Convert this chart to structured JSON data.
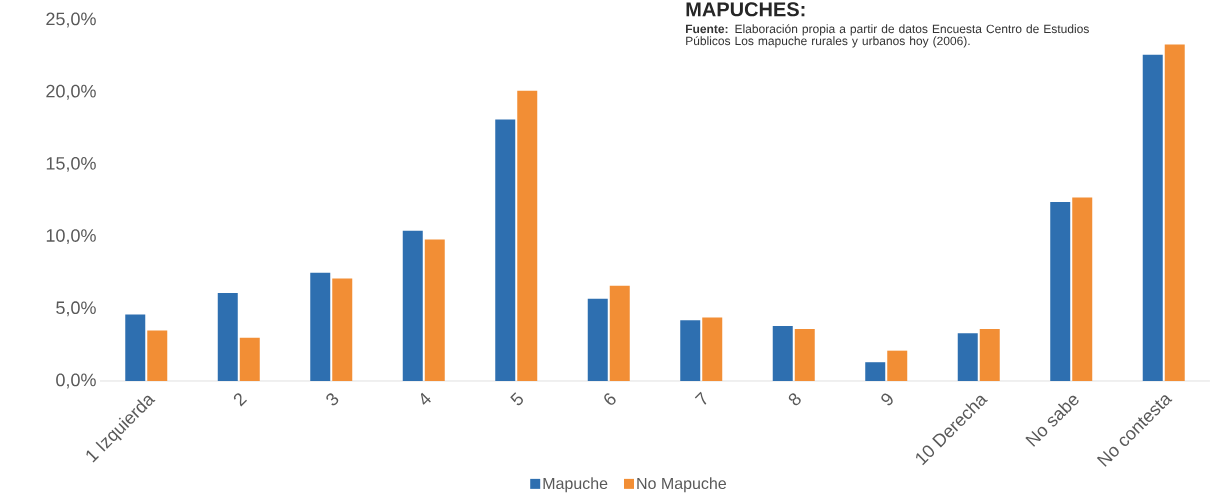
{
  "chart_data": {
    "type": "bar",
    "title": "MAPUCHES:",
    "annotations": [
      "**Fuente:** Elaboración propia a partir de datos Encuesta Centro de Estudios Públicos Los mapuche rurales y urbanos hoy (2006)."
    ],
    "categories": [
      "1 Izquierda",
      "2",
      "3",
      "4",
      "5",
      "6",
      "7",
      "8",
      "9",
      "10 Derecha",
      "No sabe",
      "No contesta"
    ],
    "series": [
      {
        "name": "Mapuche",
        "color": "#2e6fb0",
        "values": [
          4.6,
          6.1,
          7.5,
          10.4,
          18.1,
          5.7,
          4.2,
          3.8,
          1.3,
          3.3,
          12.4,
          22.6
        ]
      },
      {
        "name": "No Mapuche",
        "color": "#f28e35",
        "values": [
          3.5,
          3.0,
          7.1,
          9.8,
          20.1,
          6.6,
          4.4,
          3.6,
          2.1,
          3.6,
          12.7,
          23.3
        ]
      }
    ],
    "ylim": [
      0,
      25
    ],
    "yticks": [
      {
        "value": 0,
        "label": "0,0%"
      },
      {
        "value": 5,
        "label": "5,0%"
      },
      {
        "value": 10,
        "label": "10,0%"
      },
      {
        "value": 15,
        "label": "15,0%"
      },
      {
        "value": 20,
        "label": "20,0%"
      },
      {
        "value": 25,
        "label": "25,0%"
      }
    ],
    "legend": "bottom"
  }
}
